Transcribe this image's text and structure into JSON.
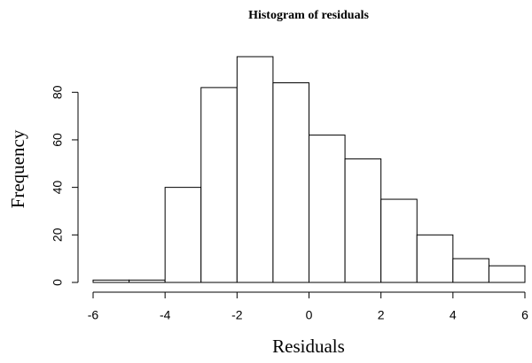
{
  "chart_data": {
    "type": "histogram",
    "title": "Histogram of residuals",
    "x_label": "Residuals",
    "y_label": "Frequency",
    "bins": [
      -6,
      -5,
      -4,
      -3,
      -2,
      -1,
      0,
      1,
      2,
      3,
      4,
      5,
      6
    ],
    "values": [
      1,
      1,
      40,
      82,
      95,
      84,
      62,
      52,
      35,
      20,
      10,
      7
    ],
    "color": "#ffffff",
    "edge_color": "#000000",
    "xlim": [
      -6,
      6
    ],
    "ylim": [
      0,
      95
    ],
    "xticks": [
      -6,
      -4,
      -2,
      0,
      2,
      4,
      6
    ],
    "yticks": [
      0,
      20,
      40,
      60,
      80
    ]
  }
}
